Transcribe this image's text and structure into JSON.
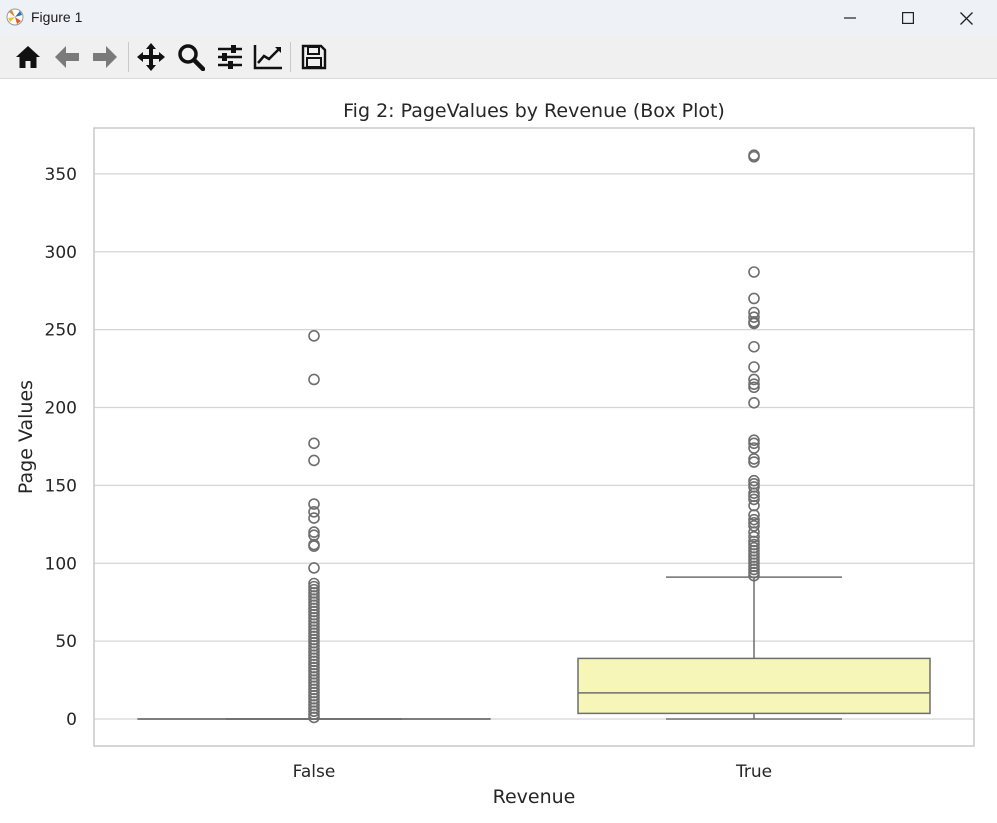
{
  "window": {
    "title": "Figure 1",
    "icon": "matplotlib-icon",
    "controls": [
      "minimize-icon",
      "maximize-icon",
      "close-icon"
    ]
  },
  "toolbar": {
    "buttons": [
      {
        "name": "home",
        "icon": "home-icon"
      },
      {
        "name": "back",
        "icon": "arrow-left-icon"
      },
      {
        "name": "forward",
        "icon": "arrow-right-icon"
      },
      {
        "name": "pan",
        "icon": "move-icon"
      },
      {
        "name": "zoom",
        "icon": "magnifier-icon"
      },
      {
        "name": "configure-subplots",
        "icon": "sliders-icon"
      },
      {
        "name": "edit-axis",
        "icon": "line-chart-icon"
      },
      {
        "name": "save",
        "icon": "floppy-disk-icon"
      }
    ]
  },
  "chart_data": {
    "type": "box",
    "title": "Fig 2: PageValues by Revenue (Box Plot)",
    "xlabel": "Revenue",
    "ylabel": "Page Values",
    "categories": [
      "False",
      "True"
    ],
    "ylim": [
      -18,
      380
    ],
    "yticks": [
      0,
      50,
      100,
      150,
      200,
      250,
      300,
      350
    ],
    "grid": true,
    "boxes": [
      {
        "category": "False",
        "q1": 0,
        "median": 0,
        "q3": 0,
        "whisker_low": 0,
        "whisker_high": 0,
        "color": "#f1a340",
        "outliers": [
          246,
          218,
          177,
          166,
          138,
          133,
          129,
          120,
          118,
          112,
          111,
          97,
          87,
          85,
          83,
          81,
          79,
          77,
          75,
          73,
          71,
          69,
          67,
          65,
          63,
          61,
          59,
          57,
          55,
          53,
          51,
          49,
          47,
          45,
          43,
          41,
          39,
          37,
          35,
          33,
          31,
          29,
          27,
          25,
          23,
          21,
          19,
          17,
          15,
          13,
          11,
          9,
          7,
          5,
          3,
          1
        ]
      },
      {
        "category": "True",
        "q1": 3.6,
        "median": 16.8,
        "q3": 38.9,
        "whisker_low": 0,
        "whisker_high": 91.1,
        "color": "#f7f6b9",
        "outliers": [
          362,
          361,
          287,
          270,
          261,
          258,
          255,
          254,
          239,
          226,
          218,
          215,
          213,
          203,
          179,
          177,
          174,
          167,
          165,
          153,
          151,
          149,
          145,
          143,
          141,
          137,
          131,
          128,
          126,
          124,
          120,
          117,
          114,
          112,
          110,
          108,
          106,
          104,
          102,
          100,
          98,
          96,
          94,
          92
        ]
      }
    ]
  }
}
